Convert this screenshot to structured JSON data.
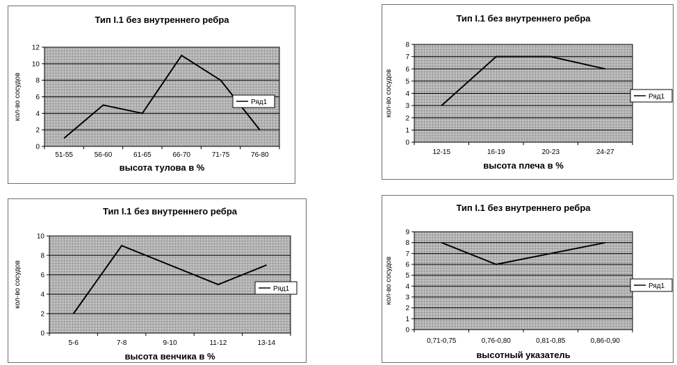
{
  "chart_data": [
    {
      "type": "line",
      "title": "Тип I.1 без внутреннего ребра",
      "xlabel": "высота тулова в %",
      "ylabel": "кол-во сосудов",
      "categories": [
        "51-55",
        "56-60",
        "61-65",
        "66-70",
        "71-75",
        "76-80"
      ],
      "series": [
        {
          "name": "Ряд1",
          "values": [
            1,
            5,
            4,
            11,
            8,
            2
          ]
        }
      ],
      "ylim": [
        0,
        12
      ],
      "yticks": [
        "0",
        "2",
        "4",
        "6",
        "8",
        "10",
        "12"
      ],
      "grid": true,
      "legend_position": "right"
    },
    {
      "type": "line",
      "title": "Тип I.1 без внутреннего ребра",
      "xlabel": "высота плеча в %",
      "ylabel": "кол-во сосудов",
      "categories": [
        "12-15",
        "16-19",
        "20-23",
        "24-27"
      ],
      "series": [
        {
          "name": "Ряд1",
          "values": [
            3,
            7,
            7,
            6
          ]
        }
      ],
      "ylim": [
        0,
        8
      ],
      "yticks": [
        "0",
        "1",
        "2",
        "3",
        "4",
        "5",
        "6",
        "7",
        "8"
      ],
      "grid": true,
      "legend_position": "right"
    },
    {
      "type": "line",
      "title": "Тип I.1 без внутреннего ребра",
      "xlabel": "высота венчика в %",
      "ylabel": "кол-во сосудов",
      "categories": [
        "5-6",
        "7-8",
        "9-10",
        "11-12",
        "13-14"
      ],
      "series": [
        {
          "name": "Ряд1",
          "values": [
            2,
            9,
            7,
            5,
            7
          ]
        }
      ],
      "ylim": [
        0,
        10
      ],
      "yticks": [
        "0",
        "2",
        "4",
        "6",
        "8",
        "10"
      ],
      "grid": true,
      "legend_position": "right"
    },
    {
      "type": "line",
      "title": "Тип I.1 без внутреннего ребра",
      "xlabel": "высотный указатель",
      "ylabel": "кол-во сосудов",
      "categories": [
        "0,71-0,75",
        "0,76-0,80",
        "0,81-0,85",
        "0,86-0,90"
      ],
      "series": [
        {
          "name": "Ряд1",
          "values": [
            8,
            6,
            7,
            8
          ]
        }
      ],
      "ylim": [
        0,
        9
      ],
      "yticks": [
        "0",
        "1",
        "2",
        "3",
        "4",
        "5",
        "6",
        "7",
        "8",
        "9"
      ],
      "grid": true,
      "legend_position": "right"
    }
  ],
  "colors": {
    "plot_background": "#b3b3b3",
    "line": "#000000",
    "gridline": "#000000",
    "frame": "#6d6d6d"
  }
}
